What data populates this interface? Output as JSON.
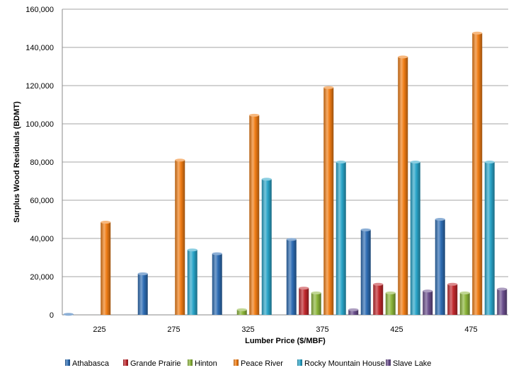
{
  "chart_data": {
    "type": "bar",
    "xlabel": "Lumber Price ($/MBF)",
    "ylabel": "Surplus Wood Residuals (BDMT)",
    "categories": [
      "225",
      "275",
      "325",
      "375",
      "425",
      "475"
    ],
    "ylim": [
      0,
      160000
    ],
    "yticks": [
      0,
      20000,
      40000,
      60000,
      80000,
      100000,
      120000,
      140000,
      160000
    ],
    "ytick_labels": [
      "0",
      "20,000",
      "40,000",
      "60,000",
      "80,000",
      "100,000",
      "120,000",
      "140,000",
      "160,000"
    ],
    "grid": true,
    "legend_position": "bottom",
    "series": [
      {
        "name": "Athabasca",
        "color": "#2e6db4",
        "values": [
          300,
          21500,
          32000,
          39500,
          44500,
          50000
        ]
      },
      {
        "name": "Grande Prairie",
        "color": "#c0282d",
        "values": [
          0,
          0,
          0,
          14000,
          16000,
          16000
        ]
      },
      {
        "name": "Hinton",
        "color": "#8cb53a",
        "values": [
          0,
          0,
          2700,
          11500,
          11500,
          11500
        ]
      },
      {
        "name": "Peace River",
        "color": "#f07d15",
        "values": [
          48500,
          81000,
          104500,
          119000,
          135000,
          147500
        ]
      },
      {
        "name": "Rocky Mountain House",
        "color": "#2aa5c9",
        "values": [
          0,
          34000,
          71000,
          80000,
          80000,
          80000
        ]
      },
      {
        "name": "Slave Lake",
        "color": "#6a4e8c",
        "values": [
          0,
          0,
          0,
          2700,
          12500,
          13500
        ]
      }
    ]
  }
}
